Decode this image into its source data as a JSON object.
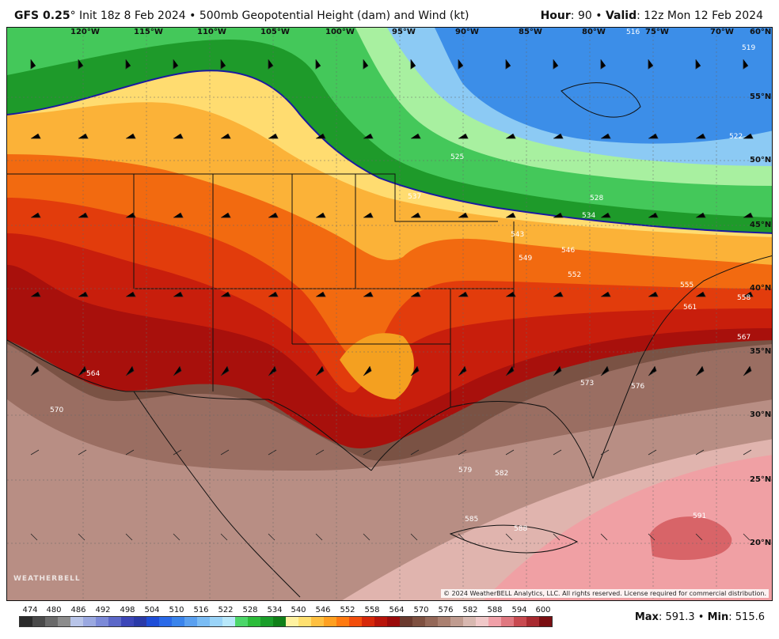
{
  "header": {
    "model": "GFS 0.25",
    "init_text": "Init 18z 8 Feb 2024 • 500mb Geopotential Height (dam) and Wind (kt)",
    "hour_label": "Hour",
    "hour_value": "90",
    "valid_label": "Valid",
    "valid_value": "12z Mon 12 Feb 2024"
  },
  "map": {
    "lon_labels": [
      "120°W",
      "115°W",
      "110°W",
      "105°W",
      "100°W",
      "95°W",
      "90°W",
      "85°W",
      "80°W",
      "75°W",
      "70°W"
    ],
    "lat_labels": [
      "60°N",
      "55°N",
      "50°N",
      "45°N",
      "40°N",
      "35°N",
      "30°N",
      "25°N",
      "20°N"
    ],
    "contour_labels": [
      "516",
      "519",
      "522",
      "525",
      "528",
      "534",
      "537",
      "543",
      "546",
      "549",
      "552",
      "555",
      "558",
      "561",
      "564",
      "567",
      "570",
      "573",
      "576",
      "579",
      "582",
      "585",
      "588",
      "591"
    ],
    "copyright": "© 2024 WeatherBELL Analytics, LLC. All rights reserved. License required for commercial distribution.",
    "watermark": "WEATHERBELL"
  },
  "colorbar": {
    "ticks": [
      "474",
      "480",
      "486",
      "492",
      "498",
      "504",
      "510",
      "516",
      "522",
      "528",
      "534",
      "540",
      "546",
      "552",
      "558",
      "564",
      "570",
      "576",
      "582",
      "588",
      "594",
      "600"
    ],
    "colors": [
      "#2b2b2b",
      "#4a4a4a",
      "#6a6a6a",
      "#8c8c8c",
      "#b8c4e8",
      "#9aa8e0",
      "#7c8ad8",
      "#5c68c8",
      "#3c46b8",
      "#2a3aa8",
      "#1e4ed8",
      "#2a6ae8",
      "#3a84ec",
      "#5aa0f0",
      "#7abcf4",
      "#9ad4f8",
      "#b8e8fa",
      "#4cd66a",
      "#2cbc3a",
      "#1a9e2a",
      "#108018",
      "#fff2a0",
      "#ffe070",
      "#ffc040",
      "#ffa020",
      "#ff7a10",
      "#f24e0c",
      "#d6280a",
      "#b8140a",
      "#9a0a0a",
      "#6a3a2e",
      "#7e5040",
      "#946858",
      "#aa8070",
      "#c09c90",
      "#d8b8b0",
      "#f0c8c8",
      "#f0a0a8",
      "#e07880",
      "#c84a50",
      "#a82a30",
      "#7a0e12"
    ]
  },
  "stats": {
    "max_label": "Max",
    "max_value": "591.3",
    "min_label": "Min",
    "min_value": "515.6"
  }
}
